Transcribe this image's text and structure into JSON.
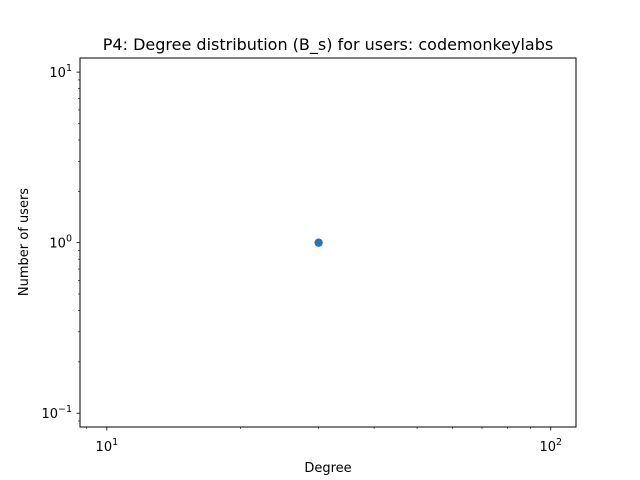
{
  "chart_data": {
    "type": "scatter",
    "title": "P4: Degree distribution (B_s) for users: codemonkeylabs",
    "xlabel": "Degree",
    "ylabel": "Number of users",
    "x_scale": "log",
    "y_scale": "log",
    "xlim": [
      8.7,
      114
    ],
    "ylim": [
      0.083,
      12.1
    ],
    "x_ticks": [
      {
        "value": 10,
        "base": "10",
        "exp": "1"
      },
      {
        "value": 100,
        "base": "10",
        "exp": "2"
      }
    ],
    "y_ticks": [
      {
        "value": 0.1,
        "base": "10",
        "exp": "−1"
      },
      {
        "value": 1,
        "base": "10",
        "exp": "0"
      },
      {
        "value": 10,
        "base": "10",
        "exp": "1"
      }
    ],
    "grid": false,
    "marker_color": "#1f77b4",
    "points": [
      {
        "x": 30,
        "y": 1
      }
    ]
  }
}
